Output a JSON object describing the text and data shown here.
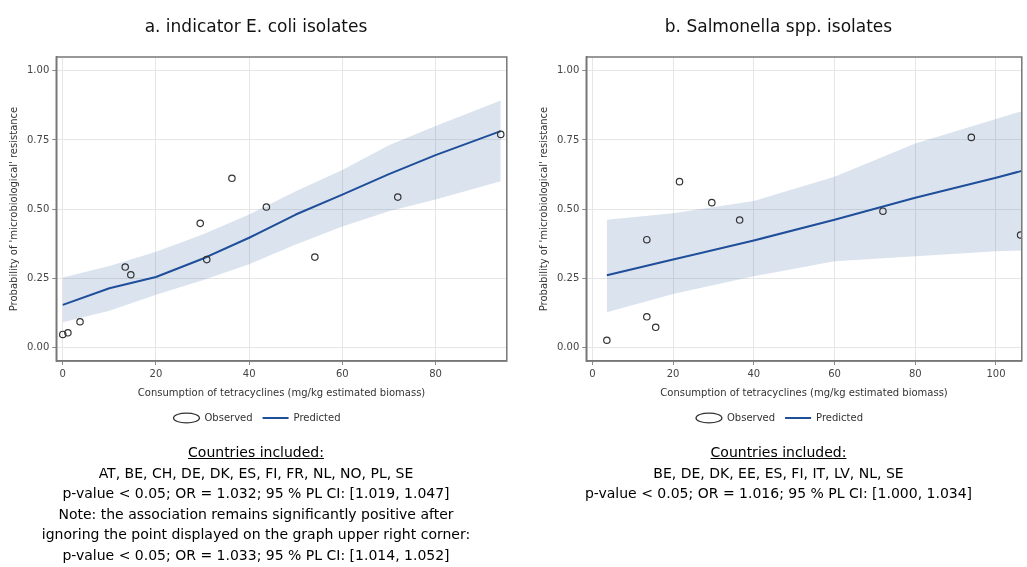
{
  "chart_data": [
    {
      "type": "scatter",
      "title": "a. indicator E. coli isolates",
      "xlabel": "Consumption of tetracyclines (mg/kg estimated biomass)",
      "ylabel": "Probability of 'microbiological' resistance",
      "xlim": [
        -1.4,
        95.3
      ],
      "xticks": [
        0,
        20,
        40,
        60,
        80
      ],
      "ylim": [
        -0.05,
        1.05
      ],
      "yticks": [
        {
          "value": 0,
          "label": "0.00"
        },
        {
          "value": 0.25,
          "label": "0.25"
        },
        {
          "value": 0.5,
          "label": "0.50"
        },
        {
          "value": 0.75,
          "label": "0.75"
        },
        {
          "value": 1,
          "label": "1.00"
        }
      ],
      "grid": true,
      "legend": "bottom",
      "series": [
        {
          "name": "Observed",
          "type": "scatter",
          "marker": "circle",
          "color": "#333333",
          "x": [
            0,
            1.1,
            3.7,
            13.4,
            14.6,
            29.5,
            30.9,
            36.3,
            43.7,
            54.1,
            71.9,
            94.0
          ],
          "values": [
            0.046,
            0.052,
            0.092,
            0.29,
            0.262,
            0.448,
            0.317,
            0.611,
            0.507,
            0.326,
            0.543,
            0.77
          ]
        },
        {
          "name": "Predicted",
          "type": "line",
          "marker": "none",
          "color": "#1f4e9a",
          "x": [
            0,
            10,
            20,
            30,
            40,
            50,
            60,
            70,
            80,
            94
          ],
          "values": [
            0.153,
            0.213,
            0.254,
            0.32,
            0.396,
            0.48,
            0.552,
            0.626,
            0.695,
            0.782
          ],
          "lower": [
            0.09,
            0.132,
            0.19,
            0.242,
            0.3,
            0.372,
            0.437,
            0.492,
            0.534,
            0.6
          ],
          "upper": [
            0.252,
            0.294,
            0.345,
            0.408,
            0.48,
            0.564,
            0.641,
            0.731,
            0.8,
            0.893
          ]
        }
      ],
      "annotations": [
        "Countries included:",
        "AT, BE, CH, DE, DK, ES, FI, FR, NL, NO, PL, SE",
        "p-value < 0.05; OR = 1.032; 95 % PL CI: [1.019, 1.047]",
        "Note: the association remains significantly positive after",
        "ignoring the point displayed on the graph upper right corner:",
        "p-value < 0.05; OR = 1.033; 95 % PL CI: [1.014, 1.052]"
      ]
    },
    {
      "type": "scatter",
      "title": "b. Salmonella spp. isolates",
      "xlabel": "Consumption of tetracyclines (mg/kg estimated biomass)",
      "ylabel": "Probability of 'microbiological' resistance",
      "xlim": [
        -1.5,
        106.4
      ],
      "xticks": [
        0,
        20,
        40,
        60,
        80,
        100
      ],
      "ylim": [
        -0.05,
        1.05
      ],
      "yticks": [
        {
          "value": 0,
          "label": "0.00"
        },
        {
          "value": 0.25,
          "label": "0.25"
        },
        {
          "value": 0.5,
          "label": "0.50"
        },
        {
          "value": 0.75,
          "label": "0.75"
        },
        {
          "value": 1,
          "label": "1.00"
        }
      ],
      "grid": true,
      "legend": "bottom",
      "series": [
        {
          "name": "Observed",
          "type": "scatter",
          "marker": "circle",
          "color": "#333333",
          "x": [
            3.6,
            13.5,
            13.5,
            15.7,
            21.6,
            29.6,
            36.5,
            72.0,
            93.9,
            106.1
          ],
          "values": [
            0.025,
            0.389,
            0.11,
            0.072,
            0.599,
            0.523,
            0.46,
            0.492,
            0.759,
            0.406
          ]
        },
        {
          "name": "Predicted",
          "type": "line",
          "marker": "none",
          "color": "#1f4e9a",
          "x": [
            3.6,
            20,
            40,
            60,
            80,
            100,
            106.4
          ],
          "values": [
            0.26,
            0.317,
            0.386,
            0.461,
            0.541,
            0.613,
            0.638
          ],
          "lower": [
            0.126,
            0.192,
            0.257,
            0.311,
            0.329,
            0.347,
            0.35
          ],
          "upper": [
            0.461,
            0.485,
            0.529,
            0.617,
            0.737,
            0.826,
            0.854
          ]
        }
      ],
      "annotations": [
        "Countries included:",
        "BE, DE, DK, EE, ES, FI, IT, LV, NL, SE",
        "p-value < 0.05; OR = 1.016; 95 % PL CI: [1.000, 1.034]"
      ]
    }
  ]
}
